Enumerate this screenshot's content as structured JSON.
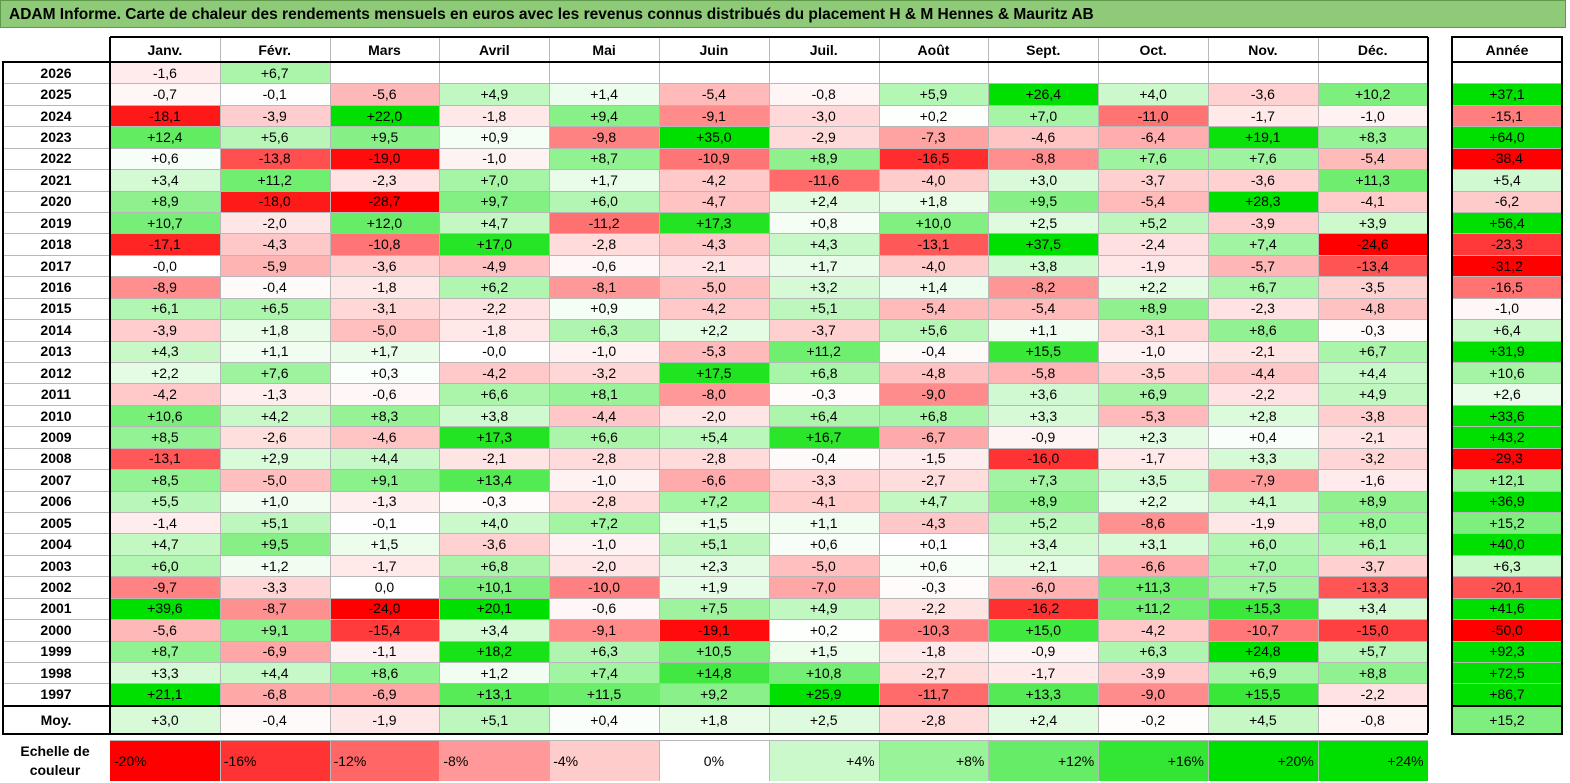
{
  "title": "ADAM Informe. Carte de chaleur des rendements mensuels en euros avec les revenus connus distribués du placement H & M Hennes & Mauritz AB",
  "chart_data": {
    "type": "heatmap",
    "title": "ADAM Informe. Carte de chaleur des rendements mensuels en euros avec les revenus connus distribués du placement H & M Hennes & Mauritz AB",
    "months": [
      "Janv.",
      "Févr.",
      "Mars",
      "Avril",
      "Mai",
      "Juin",
      "Juil.",
      "Août",
      "Sept.",
      "Oct.",
      "Nov.",
      "Déc."
    ],
    "year_header": "Année",
    "rows": [
      {
        "year": "2026",
        "values": [
          "-1,6",
          "+6,7",
          "",
          "",
          "",
          "",
          "",
          "",
          "",
          "",
          "",
          ""
        ],
        "annual": ""
      },
      {
        "year": "2025",
        "values": [
          "-0,7",
          "-0,1",
          "-5,6",
          "+4,9",
          "+1,4",
          "-5,4",
          "-0,8",
          "+5,9",
          "+26,4",
          "+4,0",
          "-3,6",
          "+10,2"
        ],
        "annual": "+37,1"
      },
      {
        "year": "2024",
        "values": [
          "-18,1",
          "-3,9",
          "+22,0",
          "-1,8",
          "+9,4",
          "-9,1",
          "-3,0",
          "+0,2",
          "+7,0",
          "-11,0",
          "-1,7",
          "-1,0"
        ],
        "annual": "-15,1"
      },
      {
        "year": "2023",
        "values": [
          "+12,4",
          "+5,6",
          "+9,5",
          "+0,9",
          "-9,8",
          "+35,0",
          "-2,9",
          "-7,3",
          "-4,6",
          "-6,4",
          "+19,1",
          "+8,3"
        ],
        "annual": "+64,0"
      },
      {
        "year": "2022",
        "values": [
          "+0,6",
          "-13,8",
          "-19,0",
          "-1,0",
          "+8,7",
          "-10,9",
          "+8,9",
          "-16,5",
          "-8,8",
          "+7,6",
          "+7,6",
          "-5,4"
        ],
        "annual": "-38,4"
      },
      {
        "year": "2021",
        "values": [
          "+3,4",
          "+11,2",
          "-2,3",
          "+7,0",
          "+1,7",
          "-4,2",
          "-11,6",
          "-4,0",
          "+3,0",
          "-3,7",
          "-3,6",
          "+11,3"
        ],
        "annual": "+5,4"
      },
      {
        "year": "2020",
        "values": [
          "+8,9",
          "-18,0",
          "-28,7",
          "+9,7",
          "+6,0",
          "-4,7",
          "+2,4",
          "+1,8",
          "+9,5",
          "-5,4",
          "+28,3",
          "-4,1"
        ],
        "annual": "-6,2"
      },
      {
        "year": "2019",
        "values": [
          "+10,7",
          "-2,0",
          "+12,0",
          "+4,7",
          "-11,2",
          "+17,3",
          "+0,8",
          "+10,0",
          "+2,5",
          "+5,2",
          "-3,9",
          "+3,9"
        ],
        "annual": "+56,4"
      },
      {
        "year": "2018",
        "values": [
          "-17,1",
          "-4,3",
          "-10,8",
          "+17,0",
          "-2,8",
          "-4,3",
          "+4,3",
          "-13,1",
          "+37,5",
          "-2,4",
          "+7,4",
          "-24,6"
        ],
        "annual": "-23,3"
      },
      {
        "year": "2017",
        "values": [
          "-0,0",
          "-5,9",
          "-3,6",
          "-4,9",
          "-0,6",
          "-2,1",
          "+1,7",
          "-4,0",
          "+3,8",
          "-1,9",
          "-5,7",
          "-13,4"
        ],
        "annual": "-31,2"
      },
      {
        "year": "2016",
        "values": [
          "-8,9",
          "-0,4",
          "-1,8",
          "+6,2",
          "-8,1",
          "-5,0",
          "+3,2",
          "+1,4",
          "-8,2",
          "+2,2",
          "+6,7",
          "-3,5"
        ],
        "annual": "-16,5"
      },
      {
        "year": "2015",
        "values": [
          "+6,1",
          "+6,5",
          "-3,1",
          "-2,2",
          "+0,9",
          "-4,2",
          "+5,1",
          "-5,4",
          "-5,4",
          "+8,9",
          "-2,3",
          "-4,8"
        ],
        "annual": "-1,0"
      },
      {
        "year": "2014",
        "values": [
          "-3,9",
          "+1,8",
          "-5,0",
          "-1,8",
          "+6,3",
          "+2,2",
          "-3,7",
          "+5,6",
          "+1,1",
          "-3,1",
          "+8,6",
          "-0,3"
        ],
        "annual": "+6,4"
      },
      {
        "year": "2013",
        "values": [
          "+4,3",
          "+1,1",
          "+1,7",
          "-0,0",
          "-1,0",
          "-5,3",
          "+11,2",
          "-0,4",
          "+15,5",
          "-1,0",
          "-2,1",
          "+6,7"
        ],
        "annual": "+31,9"
      },
      {
        "year": "2012",
        "values": [
          "+2,2",
          "+7,6",
          "+0,3",
          "-4,2",
          "-3,2",
          "+17,5",
          "+6,8",
          "-4,8",
          "-5,8",
          "-3,5",
          "-4,4",
          "+4,4"
        ],
        "annual": "+10,6"
      },
      {
        "year": "2011",
        "values": [
          "-4,2",
          "-1,3",
          "-0,6",
          "+6,6",
          "+8,1",
          "-8,0",
          "-0,3",
          "-9,0",
          "+3,6",
          "+6,9",
          "-2,2",
          "+4,9"
        ],
        "annual": "+2,6"
      },
      {
        "year": "2010",
        "values": [
          "+10,6",
          "+4,2",
          "+8,3",
          "+3,8",
          "-4,4",
          "-2,0",
          "+6,4",
          "+6,8",
          "+3,3",
          "-5,3",
          "+2,8",
          "-3,8"
        ],
        "annual": "+33,6"
      },
      {
        "year": "2009",
        "values": [
          "+8,5",
          "-2,6",
          "-4,6",
          "+17,3",
          "+6,6",
          "+5,4",
          "+16,7",
          "-6,7",
          "-0,9",
          "+2,3",
          "+0,4",
          "-2,1"
        ],
        "annual": "+43,2"
      },
      {
        "year": "2008",
        "values": [
          "-13,1",
          "+2,9",
          "+4,4",
          "-2,1",
          "-2,8",
          "-2,8",
          "-0,4",
          "-1,5",
          "-16,0",
          "-1,7",
          "+3,3",
          "-3,2"
        ],
        "annual": "-29,3"
      },
      {
        "year": "2007",
        "values": [
          "+8,5",
          "-5,0",
          "+9,1",
          "+13,4",
          "-1,0",
          "-6,6",
          "-3,3",
          "-2,7",
          "+7,3",
          "+3,5",
          "-7,9",
          "-1,6"
        ],
        "annual": "+12,1"
      },
      {
        "year": "2006",
        "values": [
          "+5,5",
          "+1,0",
          "-1,3",
          "-0,3",
          "-2,8",
          "+7,2",
          "-4,1",
          "+4,7",
          "+8,9",
          "+2,2",
          "+4,1",
          "+8,9"
        ],
        "annual": "+36,9"
      },
      {
        "year": "2005",
        "values": [
          "-1,4",
          "+5,1",
          "-0,1",
          "+4,0",
          "+7,2",
          "+1,5",
          "+1,1",
          "-4,3",
          "+5,2",
          "-8,6",
          "-1,9",
          "+8,0"
        ],
        "annual": "+15,2"
      },
      {
        "year": "2004",
        "values": [
          "+4,7",
          "+9,5",
          "+1,5",
          "-3,6",
          "-1,0",
          "+5,1",
          "+0,6",
          "+0,1",
          "+3,4",
          "+3,1",
          "+6,0",
          "+6,1"
        ],
        "annual": "+40,0"
      },
      {
        "year": "2003",
        "values": [
          "+6,0",
          "+1,2",
          "-1,7",
          "+6,8",
          "-2,0",
          "+2,3",
          "-5,0",
          "+0,6",
          "+2,1",
          "-6,6",
          "+7,0",
          "-3,7"
        ],
        "annual": "+6,3"
      },
      {
        "year": "2002",
        "values": [
          "-9,7",
          "-3,3",
          "0,0",
          "+10,1",
          "-10,0",
          "+1,9",
          "-7,0",
          "-0,3",
          "-6,0",
          "+11,3",
          "+7,5",
          "-13,3"
        ],
        "annual": "-20,1"
      },
      {
        "year": "2001",
        "values": [
          "+39,6",
          "-8,7",
          "-24,0",
          "+20,1",
          "-0,6",
          "+7,5",
          "+4,9",
          "-2,2",
          "-16,2",
          "+11,2",
          "+15,3",
          "+3,4"
        ],
        "annual": "+41,6"
      },
      {
        "year": "2000",
        "values": [
          "-5,6",
          "+9,1",
          "-15,4",
          "+3,4",
          "-9,1",
          "-19,1",
          "+0,2",
          "-10,3",
          "+15,0",
          "-4,2",
          "-10,7",
          "-15,0"
        ],
        "annual": "-50,0"
      },
      {
        "year": "1999",
        "values": [
          "+8,7",
          "-6,9",
          "-1,1",
          "+18,2",
          "+6,3",
          "+10,5",
          "+1,5",
          "-1,8",
          "-0,9",
          "+6,3",
          "+24,8",
          "+5,7"
        ],
        "annual": "+92,3"
      },
      {
        "year": "1998",
        "values": [
          "+3,3",
          "+4,4",
          "+8,6",
          "+1,2",
          "+7,4",
          "+14,8",
          "+10,8",
          "-2,7",
          "-1,7",
          "-3,9",
          "+6,9",
          "+8,8"
        ],
        "annual": "+72,5"
      },
      {
        "year": "1997",
        "values": [
          "+21,1",
          "-6,8",
          "-6,9",
          "+13,1",
          "+11,5",
          "+9,2",
          "+25,9",
          "-11,7",
          "+13,3",
          "-9,0",
          "+15,5",
          "-2,2"
        ],
        "annual": "+86,7"
      }
    ],
    "average": {
      "label": "Moy.",
      "values": [
        "+3,0",
        "-0,4",
        "-1,9",
        "+5,1",
        "+0,4",
        "+1,8",
        "+2,5",
        "-2,8",
        "+2,4",
        "-0,2",
        "+4,5",
        "-0,8"
      ],
      "annual": "+15,2"
    },
    "scale": {
      "label_line1": "Echelle de",
      "label_line2": "couleur",
      "steps": [
        "-20%",
        "-16%",
        "-12%",
        "-8%",
        "-4%",
        "0%",
        "+4%",
        "+8%",
        "+12%",
        "+16%",
        "+20%",
        "+24%"
      ],
      "step_values": [
        -20,
        -16,
        -12,
        -8,
        -4,
        0,
        4,
        8,
        12,
        16,
        20,
        24
      ]
    },
    "colors": {
      "negative": "#ff0000",
      "positive": "#00e000",
      "neutral": "#ffffff",
      "title_bar": "#8fca78"
    }
  }
}
